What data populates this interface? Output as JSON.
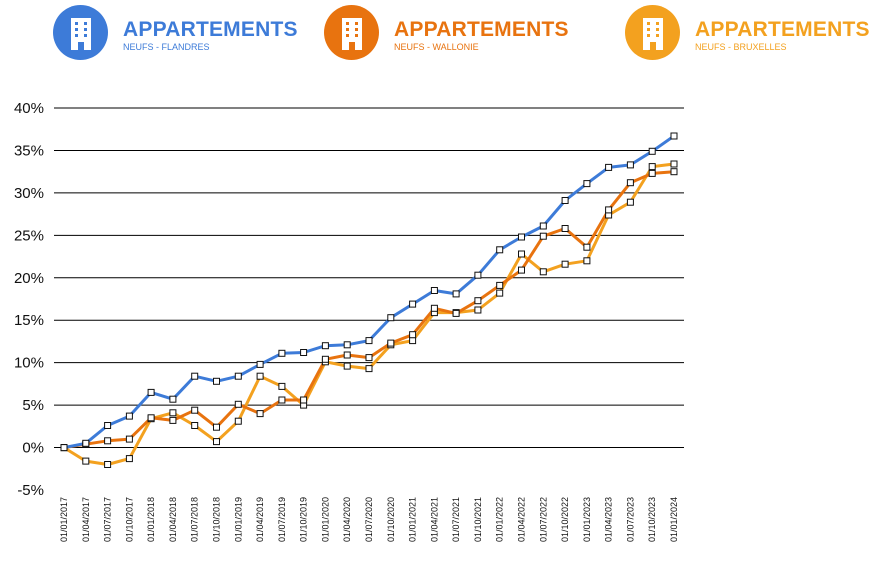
{
  "legend": [
    {
      "title": "APPARTEMENTS",
      "subtitle": "NEUFS - FLANDRES",
      "color": "#3d7bd8",
      "icon": "building-icon"
    },
    {
      "title": "APPARTEMENTS",
      "subtitle": "NEUFS - WALLONIE",
      "color": "#e8730f",
      "icon": "building-icon"
    },
    {
      "title": "APPARTEMENTS",
      "subtitle": "NEUFS - BRUXELLES",
      "color": "#f3a11f",
      "icon": "building-icon"
    }
  ],
  "chart_data": {
    "type": "line",
    "title": "",
    "xlabel": "",
    "ylabel": "",
    "ylim": [
      -5,
      40
    ],
    "yticks": [
      -5,
      0,
      5,
      10,
      15,
      20,
      25,
      30,
      35,
      40
    ],
    "ytick_labels": [
      "-5%",
      "0%",
      "5%",
      "10%",
      "15%",
      "20%",
      "25%",
      "30%",
      "35%",
      "40%"
    ],
    "grid": true,
    "categories": [
      "01/01/2017",
      "01/04/2017",
      "01/07/2017",
      "01/10/2017",
      "01/01/2018",
      "01/04/2018",
      "01/07/2018",
      "01/10/2018",
      "01/01/2019",
      "01/04/2019",
      "01/07/2019",
      "01/10/2019",
      "01/01/2020",
      "01/04/2020",
      "01/07/2020",
      "01/10/2020",
      "01/01/2021",
      "01/04/2021",
      "01/07/2021",
      "01/10/2021",
      "01/01/2022",
      "01/04/2022",
      "01/07/2022",
      "01/10/2022",
      "01/01/2023",
      "01/04/2023",
      "01/07/2023",
      "01/10/2023",
      "01/01/2024"
    ],
    "series": [
      {
        "name": "APPARTEMENTS NEUFS - FLANDRES",
        "color": "#3d7bd8",
        "values": [
          0,
          0.5,
          2.6,
          3.7,
          6.5,
          5.7,
          8.4,
          7.8,
          8.4,
          9.8,
          11.1,
          11.2,
          12.0,
          12.1,
          12.6,
          15.3,
          16.9,
          18.5,
          18.1,
          20.3,
          23.3,
          24.8,
          26.1,
          29.1,
          31.1,
          33.0,
          33.3,
          34.9,
          36.7
        ]
      },
      {
        "name": "APPARTEMENTS NEUFS - WALLONIE",
        "color": "#e8730f",
        "values": [
          0,
          0.4,
          0.8,
          1.0,
          3.5,
          3.2,
          4.4,
          2.4,
          5.1,
          4.0,
          5.6,
          5.6,
          10.4,
          10.9,
          10.6,
          12.3,
          13.3,
          16.4,
          15.8,
          17.3,
          19.1,
          20.9,
          24.9,
          25.8,
          23.6,
          28.0,
          31.2,
          32.3,
          32.5
        ]
      },
      {
        "name": "APPARTEMENTS NEUFS - BRUXELLES",
        "color": "#f3a11f",
        "values": [
          0,
          -1.6,
          -2.0,
          -1.3,
          3.4,
          4.1,
          2.6,
          0.7,
          3.1,
          8.4,
          7.2,
          5.0,
          10.1,
          9.6,
          9.3,
          12.1,
          12.6,
          15.9,
          15.9,
          16.2,
          18.2,
          22.8,
          20.7,
          21.6,
          22.0,
          27.4,
          28.9,
          33.1,
          33.4
        ]
      }
    ]
  }
}
